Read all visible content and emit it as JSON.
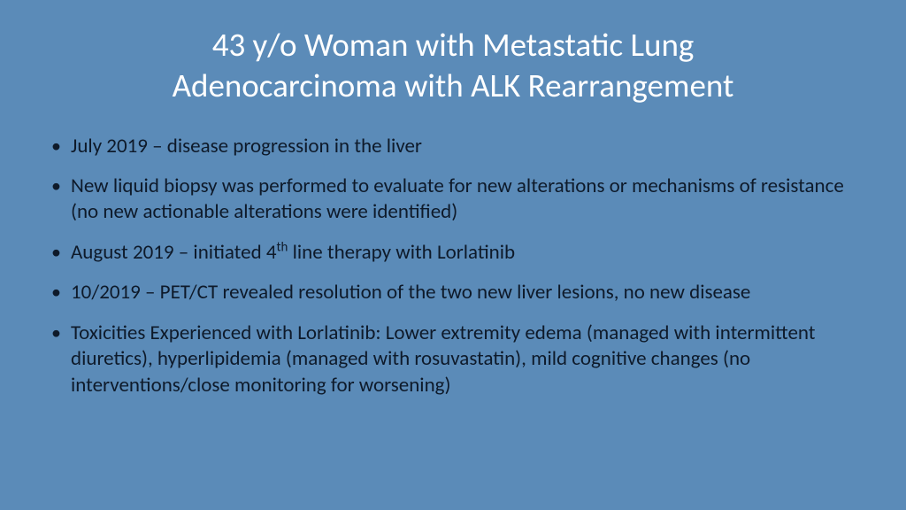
{
  "slide": {
    "background_color": "#5b8bb8",
    "title_color": "#ffffff",
    "body_text_color": "#0e1a2a",
    "title_fontsize": 37,
    "body_fontsize": 23,
    "title_line1": "43 y/o Woman with Metastatic Lung",
    "title_line2": "Adenocarcinoma with ALK Rearrangement",
    "bullets": [
      {
        "html": "July 2019 – disease progression in the liver"
      },
      {
        "html": "New liquid biopsy was performed to evaluate for new alterations or mechanisms of resistance (no new actionable alterations were identified)"
      },
      {
        "html": "August 2019 – initiated 4<sup>th</sup> line therapy with Lorlatinib"
      },
      {
        "html": "10/2019 – PET/CT revealed resolution of the two new liver lesions, no new disease"
      },
      {
        "html": "Toxicities Experienced with Lorlatinib: Lower extremity edema (managed with intermittent diuretics), hyperlipidemia (managed with rosuvastatin), mild cognitive changes (no interventions/close monitoring for worsening)"
      }
    ]
  }
}
